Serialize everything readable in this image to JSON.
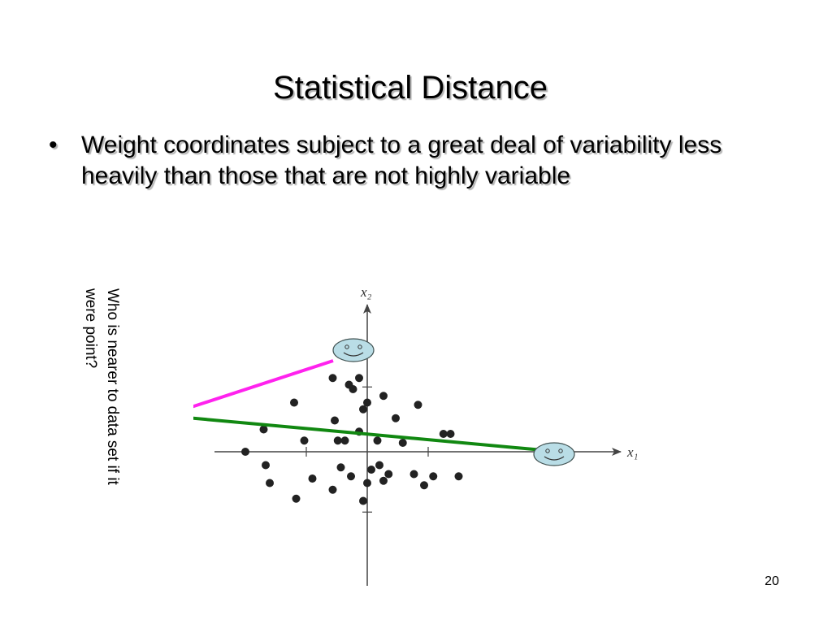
{
  "slide": {
    "title": "Statistical Distance",
    "bullet_mark": "•",
    "bullet_text": "Weight coordinates subject to a great deal of variability less heavily than those that are not highly variable",
    "side_note": "Who is nearer to data set if it\nwere point?",
    "page_number": "20"
  },
  "chart_data": {
    "type": "scatter",
    "xlabel": "x₁",
    "ylabel": "x₂",
    "grid": false,
    "legend": "none",
    "points": [
      [
        -6,
        0
      ],
      [
        -5.1,
        0.5
      ],
      [
        -5,
        -0.3
      ],
      [
        -4.8,
        -0.7
      ],
      [
        -3.6,
        1.1
      ],
      [
        -3.5,
        -1.05
      ],
      [
        -3.1,
        0.25
      ],
      [
        -2.7,
        -0.6
      ],
      [
        -1.7,
        1.65
      ],
      [
        -1.6,
        0.7
      ],
      [
        -1.7,
        -0.85
      ],
      [
        -1.45,
        0.25
      ],
      [
        -1.3,
        -0.35
      ],
      [
        -1.1,
        0.25
      ],
      [
        -0.9,
        1.5
      ],
      [
        -0.8,
        -0.55
      ],
      [
        -0.7,
        1.4
      ],
      [
        -0.4,
        0.45
      ],
      [
        -0.2,
        -1.1
      ],
      [
        -0.2,
        0.95
      ],
      [
        0,
        -0.7
      ],
      [
        0,
        1.1
      ],
      [
        0.2,
        -0.4
      ],
      [
        0.5,
        0.25
      ],
      [
        0.6,
        -0.3
      ],
      [
        0.8,
        1.25
      ],
      [
        0.8,
        -0.65
      ],
      [
        1.05,
        -0.5
      ],
      [
        1.4,
        0.75
      ],
      [
        1.75,
        0.2
      ],
      [
        2.3,
        -0.5
      ],
      [
        2.8,
        -0.75
      ],
      [
        3.25,
        -0.55
      ],
      [
        3.75,
        0.4
      ],
      [
        4.1,
        0.4
      ],
      [
        4.5,
        -0.55
      ],
      [
        2.5,
        1.05
      ],
      [
        -0.4,
        1.65
      ]
    ],
    "colors": {
      "points": "#222222",
      "axes": "#444444",
      "magenta_arrow": "#ff22ee",
      "green_arrow": "#118811",
      "face_fill": "#b9dde6",
      "face_stroke": "#445555"
    },
    "markers": [
      {
        "name": "upper-smiley-point",
        "shape": "smiley"
      },
      {
        "name": "right-smiley-point",
        "shape": "smiley"
      }
    ]
  }
}
